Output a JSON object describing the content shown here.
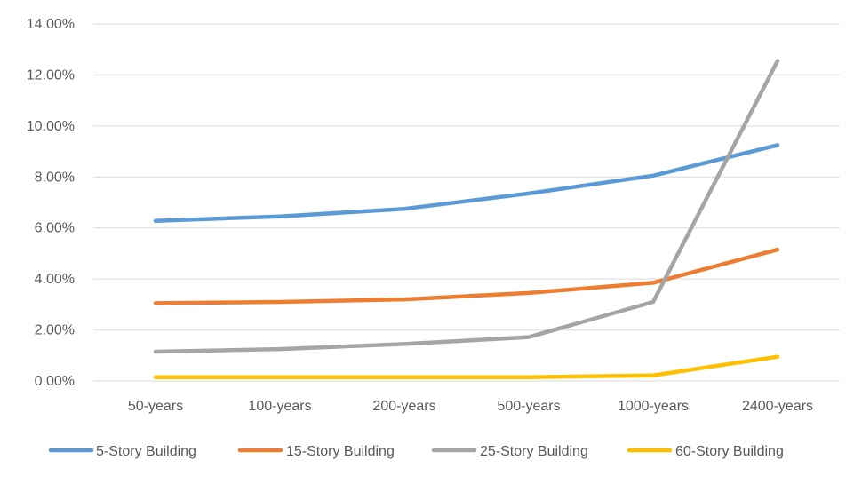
{
  "chart_data": {
    "type": "line",
    "categories": [
      "50-years",
      "100-years",
      "200-years",
      "500-years",
      "1000-years",
      "2400-years"
    ],
    "y_ticks": [
      "0.00%",
      "2.00%",
      "4.00%",
      "6.00%",
      "8.00%",
      "10.00%",
      "12.00%",
      "14.00%"
    ],
    "ylim": [
      0,
      14
    ],
    "y_unit": "percent",
    "grid": "horizontal",
    "legend_position": "bottom",
    "series": [
      {
        "name": "5-Story Building",
        "color": "#5B9BD5",
        "values": [
          6.28,
          6.45,
          6.75,
          7.35,
          8.05,
          9.25
        ]
      },
      {
        "name": "15-Story Building",
        "color": "#ED7D31",
        "values": [
          3.05,
          3.1,
          3.2,
          3.45,
          3.85,
          5.15
        ]
      },
      {
        "name": "25-Story Building",
        "color": "#A5A5A5",
        "values": [
          1.15,
          1.25,
          1.45,
          1.72,
          3.1,
          12.55
        ]
      },
      {
        "name": "60-Story Building",
        "color": "#FFC000",
        "values": [
          0.15,
          0.15,
          0.15,
          0.15,
          0.22,
          0.95
        ]
      }
    ]
  }
}
